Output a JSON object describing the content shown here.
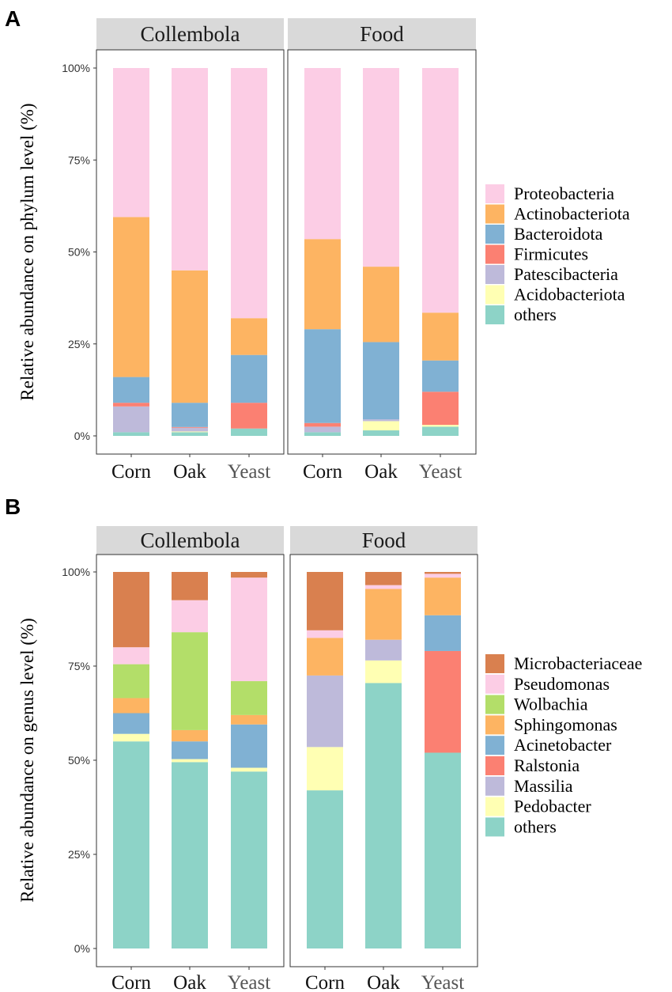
{
  "chart_data": [
    {
      "type": "bar",
      "stacked": true,
      "panel_label": "A",
      "ylabel": "Relative abundance on phylum level (%)",
      "ylim": [
        0,
        100
      ],
      "yticks": [
        "0%",
        "25%",
        "50%",
        "75%",
        "100%"
      ],
      "facets": [
        "Collembola",
        "Food"
      ],
      "categories": [
        "Corn",
        "Oak",
        "Yeast"
      ],
      "legend_position": "right",
      "series": [
        {
          "name": "others",
          "color": "#8DD3C7",
          "values": {
            "Collembola": [
              1.0,
              1.0,
              2.0
            ],
            "Food": [
              1.0,
              1.5,
              2.5
            ]
          }
        },
        {
          "name": "Acidobacteriota",
          "color": "#FFFFB3",
          "values": {
            "Collembola": [
              0.0,
              0.2,
              0.0
            ],
            "Food": [
              0.0,
              2.5,
              0.5
            ]
          }
        },
        {
          "name": "Patescibacteria",
          "color": "#BEBADA",
          "values": {
            "Collembola": [
              7.0,
              1.0,
              0.0
            ],
            "Food": [
              1.5,
              0.5,
              0.0
            ]
          }
        },
        {
          "name": "Firmicutes",
          "color": "#FB8072",
          "values": {
            "Collembola": [
              1.0,
              0.2,
              7.0
            ],
            "Food": [
              1.0,
              0.0,
              9.0
            ]
          }
        },
        {
          "name": "Bacteroidota",
          "color": "#80B1D3",
          "values": {
            "Collembola": [
              7.0,
              6.6,
              13.0
            ],
            "Food": [
              25.5,
              21.0,
              8.5
            ]
          }
        },
        {
          "name": "Actinobacteriota",
          "color": "#FDB462",
          "values": {
            "Collembola": [
              43.5,
              36.0,
              10.0
            ],
            "Food": [
              24.5,
              20.5,
              13.0
            ]
          }
        },
        {
          "name": "Proteobacteria",
          "color": "#FCCDE5",
          "values": {
            "Collembola": [
              40.5,
              55.0,
              68.0
            ],
            "Food": [
              46.5,
              54.0,
              66.5
            ]
          }
        }
      ],
      "legend_order": [
        "Proteobacteria",
        "Actinobacteriota",
        "Bacteroidota",
        "Firmicutes",
        "Patescibacteria",
        "Acidobacteriota",
        "others"
      ]
    },
    {
      "type": "bar",
      "stacked": true,
      "panel_label": "B",
      "ylabel": "Relative abundance on genus  level (%)",
      "ylim": [
        0,
        100
      ],
      "yticks": [
        "0%",
        "25%",
        "50%",
        "75%",
        "100%"
      ],
      "facets": [
        "Collembola",
        "Food"
      ],
      "categories": [
        "Corn",
        "Oak",
        "Yeast"
      ],
      "legend_position": "right",
      "series": [
        {
          "name": "others",
          "color": "#8DD3C7",
          "values": {
            "Collembola": [
              55.0,
              49.5,
              47.0
            ],
            "Food": [
              42.0,
              70.5,
              52.0
            ]
          }
        },
        {
          "name": "Pedobacter",
          "color": "#FFFFB3",
          "values": {
            "Collembola": [
              2.0,
              0.8,
              1.0
            ],
            "Food": [
              11.5,
              6.0,
              0.0
            ]
          }
        },
        {
          "name": "Massilia",
          "color": "#BEBADA",
          "values": {
            "Collembola": [
              0.0,
              0.0,
              0.0
            ],
            "Food": [
              19.0,
              5.5,
              0.0
            ]
          }
        },
        {
          "name": "Ralstonia",
          "color": "#FB8072",
          "values": {
            "Collembola": [
              0.0,
              0.0,
              0.0
            ],
            "Food": [
              0.0,
              0.0,
              27.0
            ]
          }
        },
        {
          "name": "Acinetobacter",
          "color": "#80B1D3",
          "values": {
            "Collembola": [
              5.5,
              4.7,
              11.5
            ],
            "Food": [
              0.0,
              0.0,
              9.5
            ]
          }
        },
        {
          "name": "Sphingomonas",
          "color": "#FDB462",
          "values": {
            "Collembola": [
              4.0,
              3.0,
              2.5
            ],
            "Food": [
              10.0,
              13.5,
              10.0
            ]
          }
        },
        {
          "name": "Wolbachia",
          "color": "#B3DE69",
          "values": {
            "Collembola": [
              9.0,
              26.0,
              9.0
            ],
            "Food": [
              0.0,
              0.0,
              0.0
            ]
          }
        },
        {
          "name": "Pseudomonas",
          "color": "#FCCDE5",
          "values": {
            "Collembola": [
              4.5,
              8.5,
              27.5
            ],
            "Food": [
              2.0,
              1.0,
              1.0
            ]
          }
        },
        {
          "name": "Microbacteriaceae",
          "color": "#D9804F",
          "values": {
            "Collembola": [
              20.0,
              7.5,
              1.5
            ],
            "Food": [
              15.5,
              3.5,
              0.5
            ]
          }
        }
      ],
      "legend_order": [
        "Microbacteriaceae",
        "Pseudomonas",
        "Wolbachia",
        "Sphingomonas",
        "Acinetobacter",
        "Ralstonia",
        "Massilia",
        "Pedobacter",
        "others"
      ]
    }
  ]
}
